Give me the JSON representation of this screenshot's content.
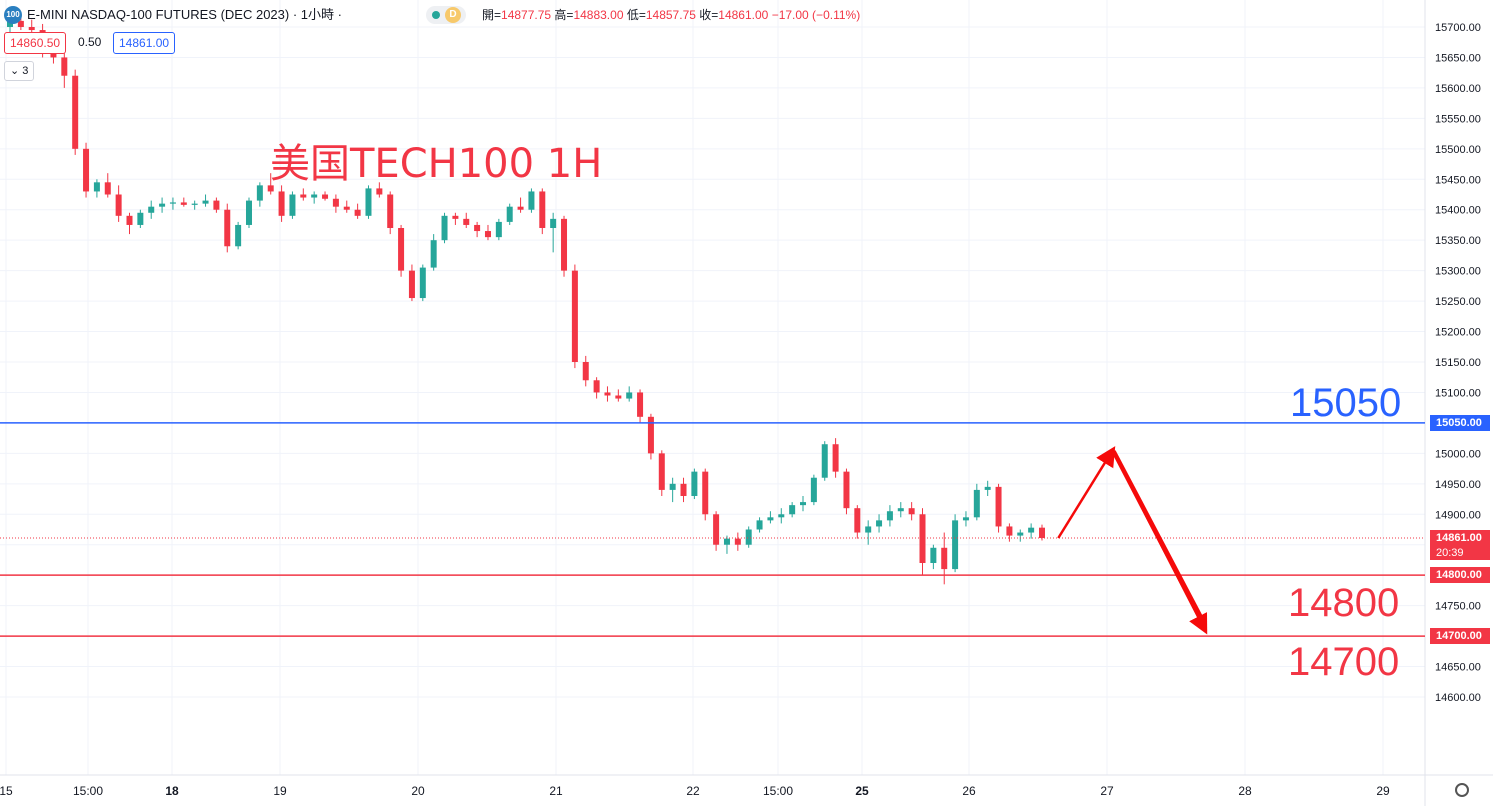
{
  "header": {
    "symbol_badge": "100",
    "symbol_title": "E-MINI NASDAQ-100 FUTURES (DEC 2023) · 1小時 ·",
    "session_badge": "D",
    "ohlc_open_label": "開=",
    "ohlc_open": "14877.75",
    "ohlc_high_label": "高=",
    "ohlc_high": "14883.00",
    "ohlc_low_label": "低=",
    "ohlc_low": "14857.75",
    "ohlc_close_label": "收=",
    "ohlc_close": "14861.00",
    "ohlc_change": "−17.00 (−0.11%)",
    "bid": "14860.50",
    "spread": "0.50",
    "ask": "14861.00",
    "collapse_label": "3"
  },
  "chart_data": {
    "type": "candlestick",
    "title": "美国TECH100 1H",
    "y_axis": {
      "ylim": [
        14585,
        15735
      ],
      "ticks": [
        "15700.00",
        "15650.00",
        "15600.00",
        "15550.00",
        "15500.00",
        "15450.00",
        "15400.00",
        "15350.00",
        "15300.00",
        "15250.00",
        "15200.00",
        "15150.00",
        "15100.00",
        "15050.00",
        "15000.00",
        "14950.00",
        "14900.00",
        "14850.00",
        "14800.00",
        "14750.00",
        "14700.00",
        "14650.00",
        "14600.00"
      ],
      "tick_values": [
        15700,
        15650,
        15600,
        15550,
        15500,
        15450,
        15400,
        15350,
        15300,
        15250,
        15200,
        15150,
        15100,
        15050,
        15000,
        14950,
        14900,
        14850,
        14800,
        14750,
        14700,
        14650,
        14600
      ]
    },
    "x_axis": {
      "labels": [
        "15",
        "15:00",
        "18",
        "19",
        "20",
        "21",
        "22",
        "15:00",
        "25",
        "26",
        "27",
        "28",
        "29"
      ]
    },
    "horizontal_levels": [
      {
        "value": 15050,
        "label": "15050",
        "tag": "15050.00",
        "color": "#2962ff"
      },
      {
        "value": 14800,
        "label": "14800",
        "tag": "14800.00",
        "color": "#f23645"
      },
      {
        "value": 14700,
        "label": "14700",
        "tag": "14700.00",
        "color": "#f23645"
      }
    ],
    "last_price": {
      "value": 14861,
      "tag": "14861.00",
      "countdown": "20:39",
      "color": "#f23645"
    },
    "colors": {
      "up": "#26a69a",
      "down": "#f23645",
      "grid": "#f0f3fa"
    },
    "candles_ohlc": [
      [
        15700,
        15720,
        15690,
        15710
      ],
      [
        15710,
        15715,
        15695,
        15700
      ],
      [
        15700,
        15712,
        15680,
        15695
      ],
      [
        15695,
        15705,
        15650,
        15660
      ],
      [
        15660,
        15675,
        15640,
        15650
      ],
      [
        15650,
        15665,
        15600,
        15620
      ],
      [
        15620,
        15630,
        15490,
        15500
      ],
      [
        15500,
        15510,
        15420,
        15430
      ],
      [
        15430,
        15450,
        15420,
        15445
      ],
      [
        15445,
        15460,
        15420,
        15425
      ],
      [
        15425,
        15440,
        15380,
        15390
      ],
      [
        15390,
        15395,
        15360,
        15375
      ],
      [
        15375,
        15400,
        15370,
        15395
      ],
      [
        15395,
        15415,
        15385,
        15405
      ],
      [
        15405,
        15420,
        15395,
        15410
      ],
      [
        15410,
        15420,
        15400,
        15412
      ],
      [
        15412,
        15420,
        15405,
        15408
      ],
      [
        15408,
        15415,
        15400,
        15410
      ],
      [
        15410,
        15425,
        15405,
        15415
      ],
      [
        15415,
        15420,
        15395,
        15400
      ],
      [
        15400,
        15410,
        15330,
        15340
      ],
      [
        15340,
        15380,
        15335,
        15375
      ],
      [
        15375,
        15420,
        15370,
        15415
      ],
      [
        15415,
        15445,
        15405,
        15440
      ],
      [
        15440,
        15460,
        15425,
        15430
      ],
      [
        15430,
        15440,
        15380,
        15390
      ],
      [
        15390,
        15430,
        15385,
        15425
      ],
      [
        15425,
        15435,
        15415,
        15420
      ],
      [
        15420,
        15430,
        15410,
        15425
      ],
      [
        15425,
        15430,
        15415,
        15418
      ],
      [
        15418,
        15425,
        15395,
        15405
      ],
      [
        15405,
        15415,
        15395,
        15400
      ],
      [
        15400,
        15410,
        15385,
        15390
      ],
      [
        15390,
        15440,
        15385,
        15435
      ],
      [
        15435,
        15445,
        15420,
        15425
      ],
      [
        15425,
        15430,
        15360,
        15370
      ],
      [
        15370,
        15375,
        15290,
        15300
      ],
      [
        15300,
        15310,
        15250,
        15255
      ],
      [
        15255,
        15310,
        15250,
        15305
      ],
      [
        15305,
        15360,
        15300,
        15350
      ],
      [
        15350,
        15395,
        15345,
        15390
      ],
      [
        15390,
        15395,
        15375,
        15385
      ],
      [
        15385,
        15395,
        15370,
        15375
      ],
      [
        15375,
        15380,
        15355,
        15365
      ],
      [
        15365,
        15375,
        15350,
        15355
      ],
      [
        15355,
        15385,
        15350,
        15380
      ],
      [
        15380,
        15410,
        15375,
        15405
      ],
      [
        15405,
        15420,
        15395,
        15400
      ],
      [
        15400,
        15435,
        15395,
        15430
      ],
      [
        15430,
        15435,
        15360,
        15370
      ],
      [
        15370,
        15395,
        15330,
        15385
      ],
      [
        15385,
        15390,
        15290,
        15300
      ],
      [
        15300,
        15310,
        15140,
        15150
      ],
      [
        15150,
        15160,
        15110,
        15120
      ],
      [
        15120,
        15125,
        15090,
        15100
      ],
      [
        15100,
        15110,
        15085,
        15095
      ],
      [
        15095,
        15105,
        15085,
        15090
      ],
      [
        15090,
        15110,
        15085,
        15100
      ],
      [
        15100,
        15105,
        15050,
        15060
      ],
      [
        15060,
        15065,
        14990,
        15000
      ],
      [
        15000,
        15005,
        14930,
        14940
      ],
      [
        14940,
        14960,
        14920,
        14950
      ],
      [
        14950,
        14960,
        14920,
        14930
      ],
      [
        14930,
        14975,
        14925,
        14970
      ],
      [
        14970,
        14975,
        14890,
        14900
      ],
      [
        14900,
        14905,
        14840,
        14850
      ],
      [
        14850,
        14865,
        14835,
        14860
      ],
      [
        14860,
        14870,
        14840,
        14850
      ],
      [
        14850,
        14880,
        14845,
        14875
      ],
      [
        14875,
        14895,
        14870,
        14890
      ],
      [
        14890,
        14905,
        14885,
        14895
      ],
      [
        14895,
        14910,
        14885,
        14900
      ],
      [
        14900,
        14920,
        14895,
        14915
      ],
      [
        14915,
        14930,
        14905,
        14920
      ],
      [
        14920,
        14965,
        14915,
        14960
      ],
      [
        14960,
        15020,
        14955,
        15015
      ],
      [
        15015,
        15025,
        14960,
        14970
      ],
      [
        14970,
        14975,
        14900,
        14910
      ],
      [
        14910,
        14915,
        14860,
        14870
      ],
      [
        14870,
        14890,
        14850,
        14880
      ],
      [
        14880,
        14900,
        14870,
        14890
      ],
      [
        14890,
        14915,
        14880,
        14905
      ],
      [
        14905,
        14920,
        14895,
        14910
      ],
      [
        14910,
        14920,
        14890,
        14900
      ],
      [
        14900,
        14910,
        14800,
        14820
      ],
      [
        14820,
        14850,
        14810,
        14845
      ],
      [
        14845,
        14870,
        14785,
        14810
      ],
      [
        14810,
        14900,
        14805,
        14890
      ],
      [
        14890,
        14905,
        14880,
        14895
      ],
      [
        14895,
        14950,
        14890,
        14940
      ],
      [
        14940,
        14955,
        14930,
        14945
      ],
      [
        14945,
        14950,
        14870,
        14880
      ],
      [
        14880,
        14885,
        14855,
        14865
      ],
      [
        14865,
        14875,
        14855,
        14870
      ],
      [
        14870,
        14885,
        14860,
        14878
      ],
      [
        14878,
        14883,
        14857,
        14861
      ]
    ],
    "annotation": {
      "type": "zigzag-arrows",
      "points": [
        [
          96.5,
          14861
        ],
        [
          101.5,
          15005
        ],
        [
          110,
          14710
        ]
      ],
      "color": "#f50a0a"
    }
  }
}
